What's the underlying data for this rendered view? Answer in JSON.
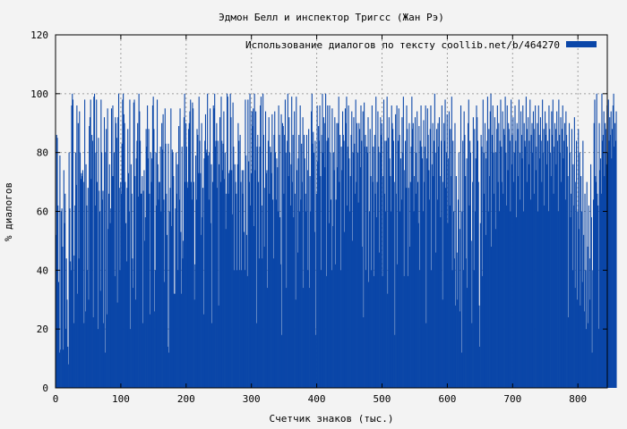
{
  "chart_data": {
    "type": "bar",
    "title": "Эдмон Белл и инспектор Тригсс (Жан Рэ)",
    "xlabel": "Счетчик знаков (тыс.)",
    "ylabel": "% диалогов",
    "xlim": [
      0,
      845
    ],
    "ylim": [
      0,
      120
    ],
    "xticks": [
      "0",
      "100",
      "200",
      "300",
      "400",
      "500",
      "600",
      "700",
      "800"
    ],
    "yticks": [
      "0",
      "20",
      "40",
      "60",
      "80",
      "100",
      "120"
    ],
    "grid": true,
    "legend_position": "top-right",
    "series": [
      {
        "name": "Использование диалогов по тексту  coollib.net/b/464270",
        "color": "#0a46a8",
        "step": 1,
        "values": [
          52,
          86,
          85,
          62,
          36,
          12,
          79,
          13,
          60,
          61,
          48,
          13,
          74,
          56,
          66,
          20,
          44,
          30,
          14,
          8,
          80,
          61,
          43,
          40,
          96,
          100,
          98,
          22,
          45,
          62,
          80,
          69,
          96,
          32,
          90,
          44,
          94,
          80,
          71,
          73,
          72,
          74,
          70,
          22,
          98,
          26,
          76,
          62,
          40,
          68,
          30,
          89,
          92,
          98,
          71,
          86,
          84,
          24,
          99,
          100,
          62,
          80,
          98,
          70,
          20,
          85,
          67,
          60,
          33,
          98,
          80,
          64,
          67,
          22,
          92,
          12,
          80,
          88,
          25,
          95,
          54,
          66,
          76,
          56,
          61,
          95,
          72,
          96,
          72,
          80,
          38,
          92,
          90,
          85,
          29,
          92,
          100,
          68,
          40,
          70,
          66,
          83,
          98,
          100,
          93,
          90,
          70,
          56,
          43,
          68,
          88,
          73,
          60,
          98,
          20,
          76,
          66,
          44,
          34,
          97,
          98,
          72,
          30,
          78,
          84,
          90,
          65,
          100,
          94,
          84,
          66,
          66,
          72,
          22,
          67,
          74,
          50,
          58,
          88,
          82,
          96,
          78,
          88,
          66,
          25,
          80,
          70,
          78,
          96,
          99,
          88,
          26,
          40,
          80,
          62,
          98,
          76,
          64,
          70,
          70,
          82,
          60,
          90,
          81,
          93,
          64,
          36,
          95,
          83,
          66,
          52,
          14,
          83,
          12,
          60,
          68,
          95,
          55,
          81,
          80,
          72,
          32,
          32,
          61,
          80,
          66,
          76,
          40,
          89,
          64,
          95,
          53,
          32,
          82,
          44,
          50,
          92,
          100,
          70,
          90,
          82,
          70,
          68,
          88,
          90,
          94,
          98,
          70,
          64,
          97,
          95,
          70,
          30,
          42,
          79,
          64,
          88,
          86,
          73,
          99,
          84,
          73,
          52,
          90,
          58,
          68,
          25,
          78,
          84,
          93,
          80,
          81,
          100,
          79,
          64,
          80,
          95,
          56,
          76,
          22,
          70,
          96,
          95,
          100,
          82,
          84,
          90,
          68,
          84,
          28,
          76,
          92,
          70,
          99,
          84,
          74,
          83,
          94,
          71,
          80,
          54,
          66,
          100,
          99,
          66,
          73,
          74,
          100,
          92,
          74,
          59,
          97,
          82,
          40,
          76,
          70,
          66,
          40,
          76,
          90,
          84,
          40,
          86,
          70,
          40,
          74,
          66,
          74,
          53,
          40,
          98,
          79,
          52,
          38,
          98,
          77,
          70,
          100,
          62,
          73,
          94,
          89,
          95,
          55,
          100,
          74,
          94,
          22,
          82,
          86,
          70,
          44,
          82,
          96,
          99,
          62,
          44,
          100,
          86,
          48,
          68,
          94,
          73,
          74,
          34,
          84,
          92,
          66,
          82,
          80,
          73,
          93,
          64,
          44,
          86,
          94,
          80,
          64,
          78,
          75,
          60,
          96,
          86,
          58,
          42,
          93,
          18,
          90,
          89,
          66,
          86,
          98,
          80,
          34,
          84,
          100,
          72,
          92,
          80,
          62,
          76,
          99,
          70,
          86,
          58,
          94,
          66,
          30,
          99,
          74,
          46,
          78,
          86,
          60,
          96,
          64,
          83,
          70,
          92,
          34,
          86,
          78,
          66,
          60,
          86,
          74,
          40,
          88,
          34,
          72,
          60,
          94,
          100,
          83,
          87,
          80,
          53,
          84,
          18,
          66,
          96,
          77,
          89,
          84,
          96,
          72,
          40,
          86,
          100,
          80,
          92,
          90,
          75,
          100,
          38,
          84,
          96,
          85,
          56,
          96,
          80,
          64,
          40,
          95,
          55,
          80,
          74,
          92,
          42,
          64,
          90,
          75,
          90,
          99,
          70,
          86,
          40,
          82,
          74,
          94,
          86,
          84,
          53,
          95,
          90,
          99,
          62,
          82,
          96,
          78,
          60,
          72,
          86,
          94,
          50,
          80,
          92,
          83,
          66,
          98,
          70,
          90,
          80,
          63,
          90,
          88,
          75,
          96,
          84,
          48,
          94,
          24,
          97,
          82,
          86,
          40,
          82,
          80,
          92,
          36,
          60,
          88,
          72,
          40,
          96,
          70,
          82,
          38,
          86,
          66,
          99,
          58,
          70,
          94,
          82,
          46,
          80,
          92,
          86,
          90,
          38,
          72,
          98,
          66,
          84,
          60,
          84,
          99,
          32,
          85,
          92,
          78,
          72,
          60,
          96,
          90,
          88,
          84,
          70,
          18,
          93,
          66,
          96,
          42,
          84,
          95,
          86,
          60,
          78,
          64,
          92,
          80,
          99,
          38,
          74,
          84,
          68,
          96,
          88,
          38,
          68,
          90,
          48,
          70,
          82,
          99,
          88,
          90,
          60,
          72,
          92,
          66,
          80,
          94,
          70,
          56,
          89,
          40,
          84,
          96,
          82,
          78,
          60,
          91,
          70,
          82,
          96,
          22,
          78,
          95,
          86,
          74,
          64,
          88,
          96,
          40,
          76,
          90,
          72,
          84,
          100,
          80,
          46,
          88,
          64,
          90,
          82,
          92,
          72,
          58,
          84,
          96,
          30,
          70,
          90,
          84,
          98,
          68,
          80,
          93,
          56,
          78,
          94,
          62,
          88,
          72,
          99,
          40,
          84,
          60,
          44,
          90,
          28,
          72,
          46,
          30,
          64,
          80,
          54,
          26,
          96,
          12,
          60,
          84,
          40,
          94,
          86,
          72,
          44,
          78,
          34,
          90,
          98,
          62,
          84,
          80,
          50,
          22,
          70,
          92,
          40,
          88,
          60,
          78,
          96,
          92,
          84,
          70,
          28,
          14,
          56,
          86,
          82,
          38,
          98,
          80,
          66,
          90,
          52,
          78,
          84,
          99,
          60,
          88,
          72,
          94,
          100,
          48,
          86,
          96,
          80,
          66,
          92,
          54,
          80,
          88,
          96,
          70,
          90,
          60,
          84,
          98,
          82,
          70,
          94,
          66,
          88,
          86,
          99,
          80,
          62,
          96,
          74,
          90,
          88,
          84,
          60,
          98,
          76,
          86,
          92,
          70,
          80,
          96,
          84,
          58,
          90,
          88,
          72,
          98,
          80,
          64,
          94,
          86,
          78,
          96,
          60,
          90,
          84,
          82,
          99,
          70,
          88,
          92,
          76,
          84,
          98,
          64,
          86,
          90,
          80,
          94,
          66,
          88,
          96,
          74,
          82,
          90,
          60,
          96,
          86,
          78,
          92,
          84,
          70,
          98,
          80,
          88,
          62,
          94,
          86,
          90,
          76,
          84,
          60,
          96,
          88,
          80,
          72,
          94,
          86,
          98,
          66,
          82,
          90,
          88,
          76,
          94,
          84,
          60,
          98,
          86,
          80,
          92,
          70,
          88,
          96,
          78,
          84,
          90,
          64,
          94,
          86,
          82,
          72,
          24,
          90,
          80,
          58,
          66,
          88,
          40,
          76,
          62,
          92,
          34,
          70,
          84,
          30,
          60,
          88,
          54,
          80,
          28,
          72,
          60,
          36,
          84,
          52,
          26,
          66,
          40,
          20,
          70,
          48,
          22,
          62,
          44,
          30,
          76,
          58,
          12,
          40,
          64,
          90,
          98,
          72,
          70,
          100,
          66,
          62,
          20,
          90,
          74,
          78,
          66,
          100,
          84,
          86,
          94,
          72,
          90,
          88,
          76,
          96,
          80,
          98,
          84,
          92,
          86,
          94,
          78,
          88,
          96,
          100,
          82,
          90,
          84,
          94
        ]
      }
    ]
  }
}
